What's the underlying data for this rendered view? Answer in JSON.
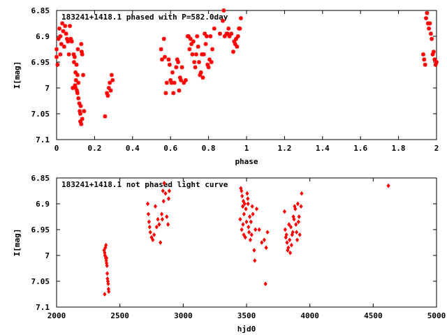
{
  "colors": {
    "points": "#ff0000",
    "axes": "#000000",
    "background": "#ffffff"
  },
  "chart_data": [
    {
      "type": "scatter",
      "title": "183241+1418.1 phased with P=582.0day",
      "xlabel": "phase",
      "ylabel": "I[mag]",
      "xlim": [
        0,
        2
      ],
      "ylim": [
        6.85,
        7.1
      ],
      "y_inverted": true,
      "grid": false,
      "marker": "star",
      "x_ticks": [
        "0",
        "0.2",
        "0.4",
        "0.6",
        "0.8",
        "1",
        "1.2",
        "1.4",
        "1.6",
        "1.8",
        "2"
      ],
      "y_ticks": [
        "6.85",
        "6.9",
        "6.95",
        "7",
        "7.05",
        "7.1"
      ],
      "series": [
        {
          "points": [
            [
              0.0,
              6.94
            ],
            [
              0.0,
              6.925
            ],
            [
              0.005,
              6.955
            ],
            [
              0.01,
              6.905
            ],
            [
              0.015,
              6.885
            ],
            [
              0.02,
              6.9
            ],
            [
              0.02,
              6.935
            ],
            [
              0.025,
              6.915
            ],
            [
              0.03,
              6.875
            ],
            [
              0.035,
              6.89
            ],
            [
              0.04,
              6.92
            ],
            [
              0.045,
              6.88
            ],
            [
              0.05,
              6.895
            ],
            [
              0.055,
              6.905
            ],
            [
              0.06,
              6.91
            ],
            [
              0.065,
              6.935
            ],
            [
              0.07,
              6.88
            ],
            [
              0.075,
              6.905
            ],
            [
              0.08,
              6.91
            ],
            [
              0.085,
              7.0
            ],
            [
              0.09,
              6.935
            ],
            [
              0.092,
              6.95
            ],
            [
              0.095,
              6.94
            ],
            [
              0.097,
              6.995
            ],
            [
              0.1,
              6.97
            ],
            [
              0.1,
              7.0
            ],
            [
              0.102,
              6.985
            ],
            [
              0.105,
              6.955
            ],
            [
              0.107,
              7.005
            ],
            [
              0.11,
              6.975
            ],
            [
              0.11,
              7.01
            ],
            [
              0.112,
              6.925
            ],
            [
              0.115,
              6.99
            ],
            [
              0.115,
              7.02
            ],
            [
              0.12,
              7.03
            ],
            [
              0.122,
              7.045
            ],
            [
              0.125,
              7.05
            ],
            [
              0.125,
              7.065
            ],
            [
              0.127,
              7.035
            ],
            [
              0.13,
              6.915
            ],
            [
              0.13,
              7.07
            ],
            [
              0.132,
              6.93
            ],
            [
              0.135,
              6.935
            ],
            [
              0.135,
              7.06
            ],
            [
              0.14,
              6.975
            ],
            [
              0.145,
              7.045
            ],
            [
              0.255,
              7.055
            ],
            [
              0.265,
              7.01
            ],
            [
              0.27,
              7.015
            ],
            [
              0.275,
              7.0
            ],
            [
              0.28,
              6.99
            ],
            [
              0.285,
              7.005
            ],
            [
              0.29,
              6.975
            ],
            [
              0.295,
              6.985
            ],
            [
              0.55,
              6.925
            ],
            [
              0.555,
              6.945
            ],
            [
              0.565,
              6.905
            ],
            [
              0.57,
              6.94
            ],
            [
              0.575,
              7.01
            ],
            [
              0.58,
              6.99
            ],
            [
              0.59,
              6.945
            ],
            [
              0.595,
              6.955
            ],
            [
              0.6,
              6.985
            ],
            [
              0.605,
              6.99
            ],
            [
              0.61,
              6.97
            ],
            [
              0.615,
              7.01
            ],
            [
              0.62,
              6.99
            ],
            [
              0.63,
              6.96
            ],
            [
              0.635,
              6.945
            ],
            [
              0.64,
              6.95
            ],
            [
              0.645,
              7.005
            ],
            [
              0.65,
              6.98
            ],
            [
              0.655,
              6.985
            ],
            [
              0.66,
              6.96
            ],
            [
              0.67,
              6.99
            ],
            [
              0.68,
              6.985
            ],
            [
              0.69,
              6.9
            ],
            [
              0.695,
              6.9
            ],
            [
              0.7,
              6.925
            ],
            [
              0.705,
              6.905
            ],
            [
              0.71,
              6.915
            ],
            [
              0.715,
              6.935
            ],
            [
              0.72,
              6.91
            ],
            [
              0.725,
              6.95
            ],
            [
              0.73,
              6.96
            ],
            [
              0.735,
              6.935
            ],
            [
              0.74,
              6.9
            ],
            [
              0.745,
              6.92
            ],
            [
              0.75,
              6.95
            ],
            [
              0.755,
              6.975
            ],
            [
              0.76,
              6.97
            ],
            [
              0.765,
              6.935
            ],
            [
              0.77,
              6.98
            ],
            [
              0.775,
              6.935
            ],
            [
              0.78,
              6.895
            ],
            [
              0.785,
              6.915
            ],
            [
              0.79,
              6.9
            ],
            [
              0.795,
              6.955
            ],
            [
              0.8,
              6.96
            ],
            [
              0.805,
              6.945
            ],
            [
              0.81,
              6.9
            ],
            [
              0.815,
              6.95
            ],
            [
              0.82,
              6.925
            ],
            [
              0.83,
              6.885
            ],
            [
              0.86,
              6.895
            ],
            [
              0.875,
              6.87
            ],
            [
              0.88,
              6.85
            ],
            [
              0.885,
              6.9
            ],
            [
              0.895,
              6.895
            ],
            [
              0.9,
              6.895
            ],
            [
              0.905,
              6.885
            ],
            [
              0.91,
              6.9
            ],
            [
              0.92,
              6.895
            ],
            [
              0.93,
              6.93
            ],
            [
              0.935,
              6.91
            ],
            [
              0.94,
              6.915
            ],
            [
              0.945,
              6.905
            ],
            [
              0.95,
              6.92
            ],
            [
              0.955,
              6.9
            ],
            [
              0.96,
              6.885
            ],
            [
              0.965,
              6.885
            ],
            [
              0.97,
              6.865
            ],
            [
              1.93,
              6.935
            ],
            [
              1.935,
              6.945
            ],
            [
              1.94,
              6.955
            ],
            [
              1.945,
              6.865
            ],
            [
              1.95,
              6.855
            ],
            [
              1.955,
              6.875
            ],
            [
              1.96,
              6.885
            ],
            [
              1.965,
              6.875
            ],
            [
              1.97,
              6.895
            ],
            [
              1.975,
              6.905
            ],
            [
              1.98,
              6.935
            ],
            [
              1.985,
              6.93
            ],
            [
              1.99,
              6.945
            ],
            [
              1.995,
              6.955
            ],
            [
              2.0,
              6.95
            ]
          ]
        }
      ]
    },
    {
      "type": "scatter",
      "title": "183241+1418.1 not phased light curve",
      "xlabel": "hjd0",
      "ylabel": "I[mag]",
      "xlim": [
        2000,
        5000
      ],
      "ylim": [
        6.85,
        7.1
      ],
      "y_inverted": true,
      "grid": false,
      "marker": "diamond",
      "x_ticks": [
        "2000",
        "2500",
        "3000",
        "3500",
        "4000",
        "4500",
        "5000"
      ],
      "y_ticks": [
        "6.85",
        "6.9",
        "6.95",
        "7",
        "7.05",
        "7.1"
      ],
      "series": [
        {
          "points": [
            [
              2375,
              6.99
            ],
            [
              2380,
              6.995
            ],
            [
              2382,
              7.0
            ],
            [
              2385,
              6.985
            ],
            [
              2388,
              7.005
            ],
            [
              2390,
              6.98
            ],
            [
              2392,
              7.01
            ],
            [
              2395,
              7.015
            ],
            [
              2398,
              7.02
            ],
            [
              2400,
              7.035
            ],
            [
              2402,
              7.045
            ],
            [
              2405,
              7.05
            ],
            [
              2408,
              7.055
            ],
            [
              2410,
              7.065
            ],
            [
              2412,
              7.07
            ],
            [
              2380,
              7.075
            ],
            [
              2395,
              7.005
            ],
            [
              2720,
              6.9
            ],
            [
              2725,
              6.92
            ],
            [
              2730,
              6.935
            ],
            [
              2735,
              6.945
            ],
            [
              2740,
              6.955
            ],
            [
              2750,
              6.965
            ],
            [
              2760,
              6.97
            ],
            [
              2770,
              6.96
            ],
            [
              2780,
              6.905
            ],
            [
              2790,
              6.945
            ],
            [
              2800,
              6.93
            ],
            [
              2810,
              6.94
            ],
            [
              2820,
              6.975
            ],
            [
              2830,
              6.92
            ],
            [
              2835,
              6.93
            ],
            [
              2840,
              6.875
            ],
            [
              2845,
              6.895
            ],
            [
              2850,
              6.86
            ],
            [
              2860,
              6.88
            ],
            [
              2870,
              6.925
            ],
            [
              2880,
              6.94
            ],
            [
              2885,
              6.89
            ],
            [
              2890,
              6.875
            ],
            [
              3450,
              6.93
            ],
            [
              3455,
              6.87
            ],
            [
              3460,
              6.875
            ],
            [
              3462,
              6.95
            ],
            [
              3465,
              6.885
            ],
            [
              3470,
              6.905
            ],
            [
              3472,
              6.94
            ],
            [
              3475,
              6.895
            ],
            [
              3478,
              6.96
            ],
            [
              3480,
              6.92
            ],
            [
              3485,
              6.9
            ],
            [
              3490,
              6.965
            ],
            [
              3495,
              6.91
            ],
            [
              3500,
              6.935
            ],
            [
              3505,
              6.88
            ],
            [
              3510,
              6.89
            ],
            [
              3512,
              6.9
            ],
            [
              3515,
              6.945
            ],
            [
              3520,
              6.955
            ],
            [
              3525,
              6.925
            ],
            [
              3530,
              6.97
            ],
            [
              3535,
              6.935
            ],
            [
              3540,
              6.96
            ],
            [
              3545,
              6.905
            ],
            [
              3550,
              6.92
            ],
            [
              3560,
              6.99
            ],
            [
              3565,
              7.01
            ],
            [
              3570,
              6.95
            ],
            [
              3580,
              6.91
            ],
            [
              3600,
              6.95
            ],
            [
              3620,
              6.975
            ],
            [
              3640,
              6.97
            ],
            [
              3650,
              7.055
            ],
            [
              3655,
              6.985
            ],
            [
              3665,
              6.955
            ],
            [
              3800,
              6.915
            ],
            [
              3805,
              6.95
            ],
            [
              3810,
              6.965
            ],
            [
              3815,
              6.96
            ],
            [
              3820,
              6.975
            ],
            [
              3825,
              6.99
            ],
            [
              3830,
              6.985
            ],
            [
              3835,
              6.94
            ],
            [
              3840,
              6.97
            ],
            [
              3845,
              6.995
            ],
            [
              3850,
              6.945
            ],
            [
              3855,
              6.98
            ],
            [
              3860,
              6.96
            ],
            [
              3865,
              6.955
            ],
            [
              3870,
              6.925
            ],
            [
              3875,
              6.93
            ],
            [
              3880,
              6.905
            ],
            [
              3885,
              6.91
            ],
            [
              3890,
              6.94
            ],
            [
              3895,
              6.955
            ],
            [
              3900,
              6.97
            ],
            [
              3905,
              6.9
            ],
            [
              3910,
              6.935
            ],
            [
              3915,
              6.925
            ],
            [
              3920,
              6.96
            ],
            [
              3930,
              6.905
            ],
            [
              3935,
              6.88
            ],
            [
              4620,
              6.865
            ]
          ]
        }
      ]
    }
  ]
}
